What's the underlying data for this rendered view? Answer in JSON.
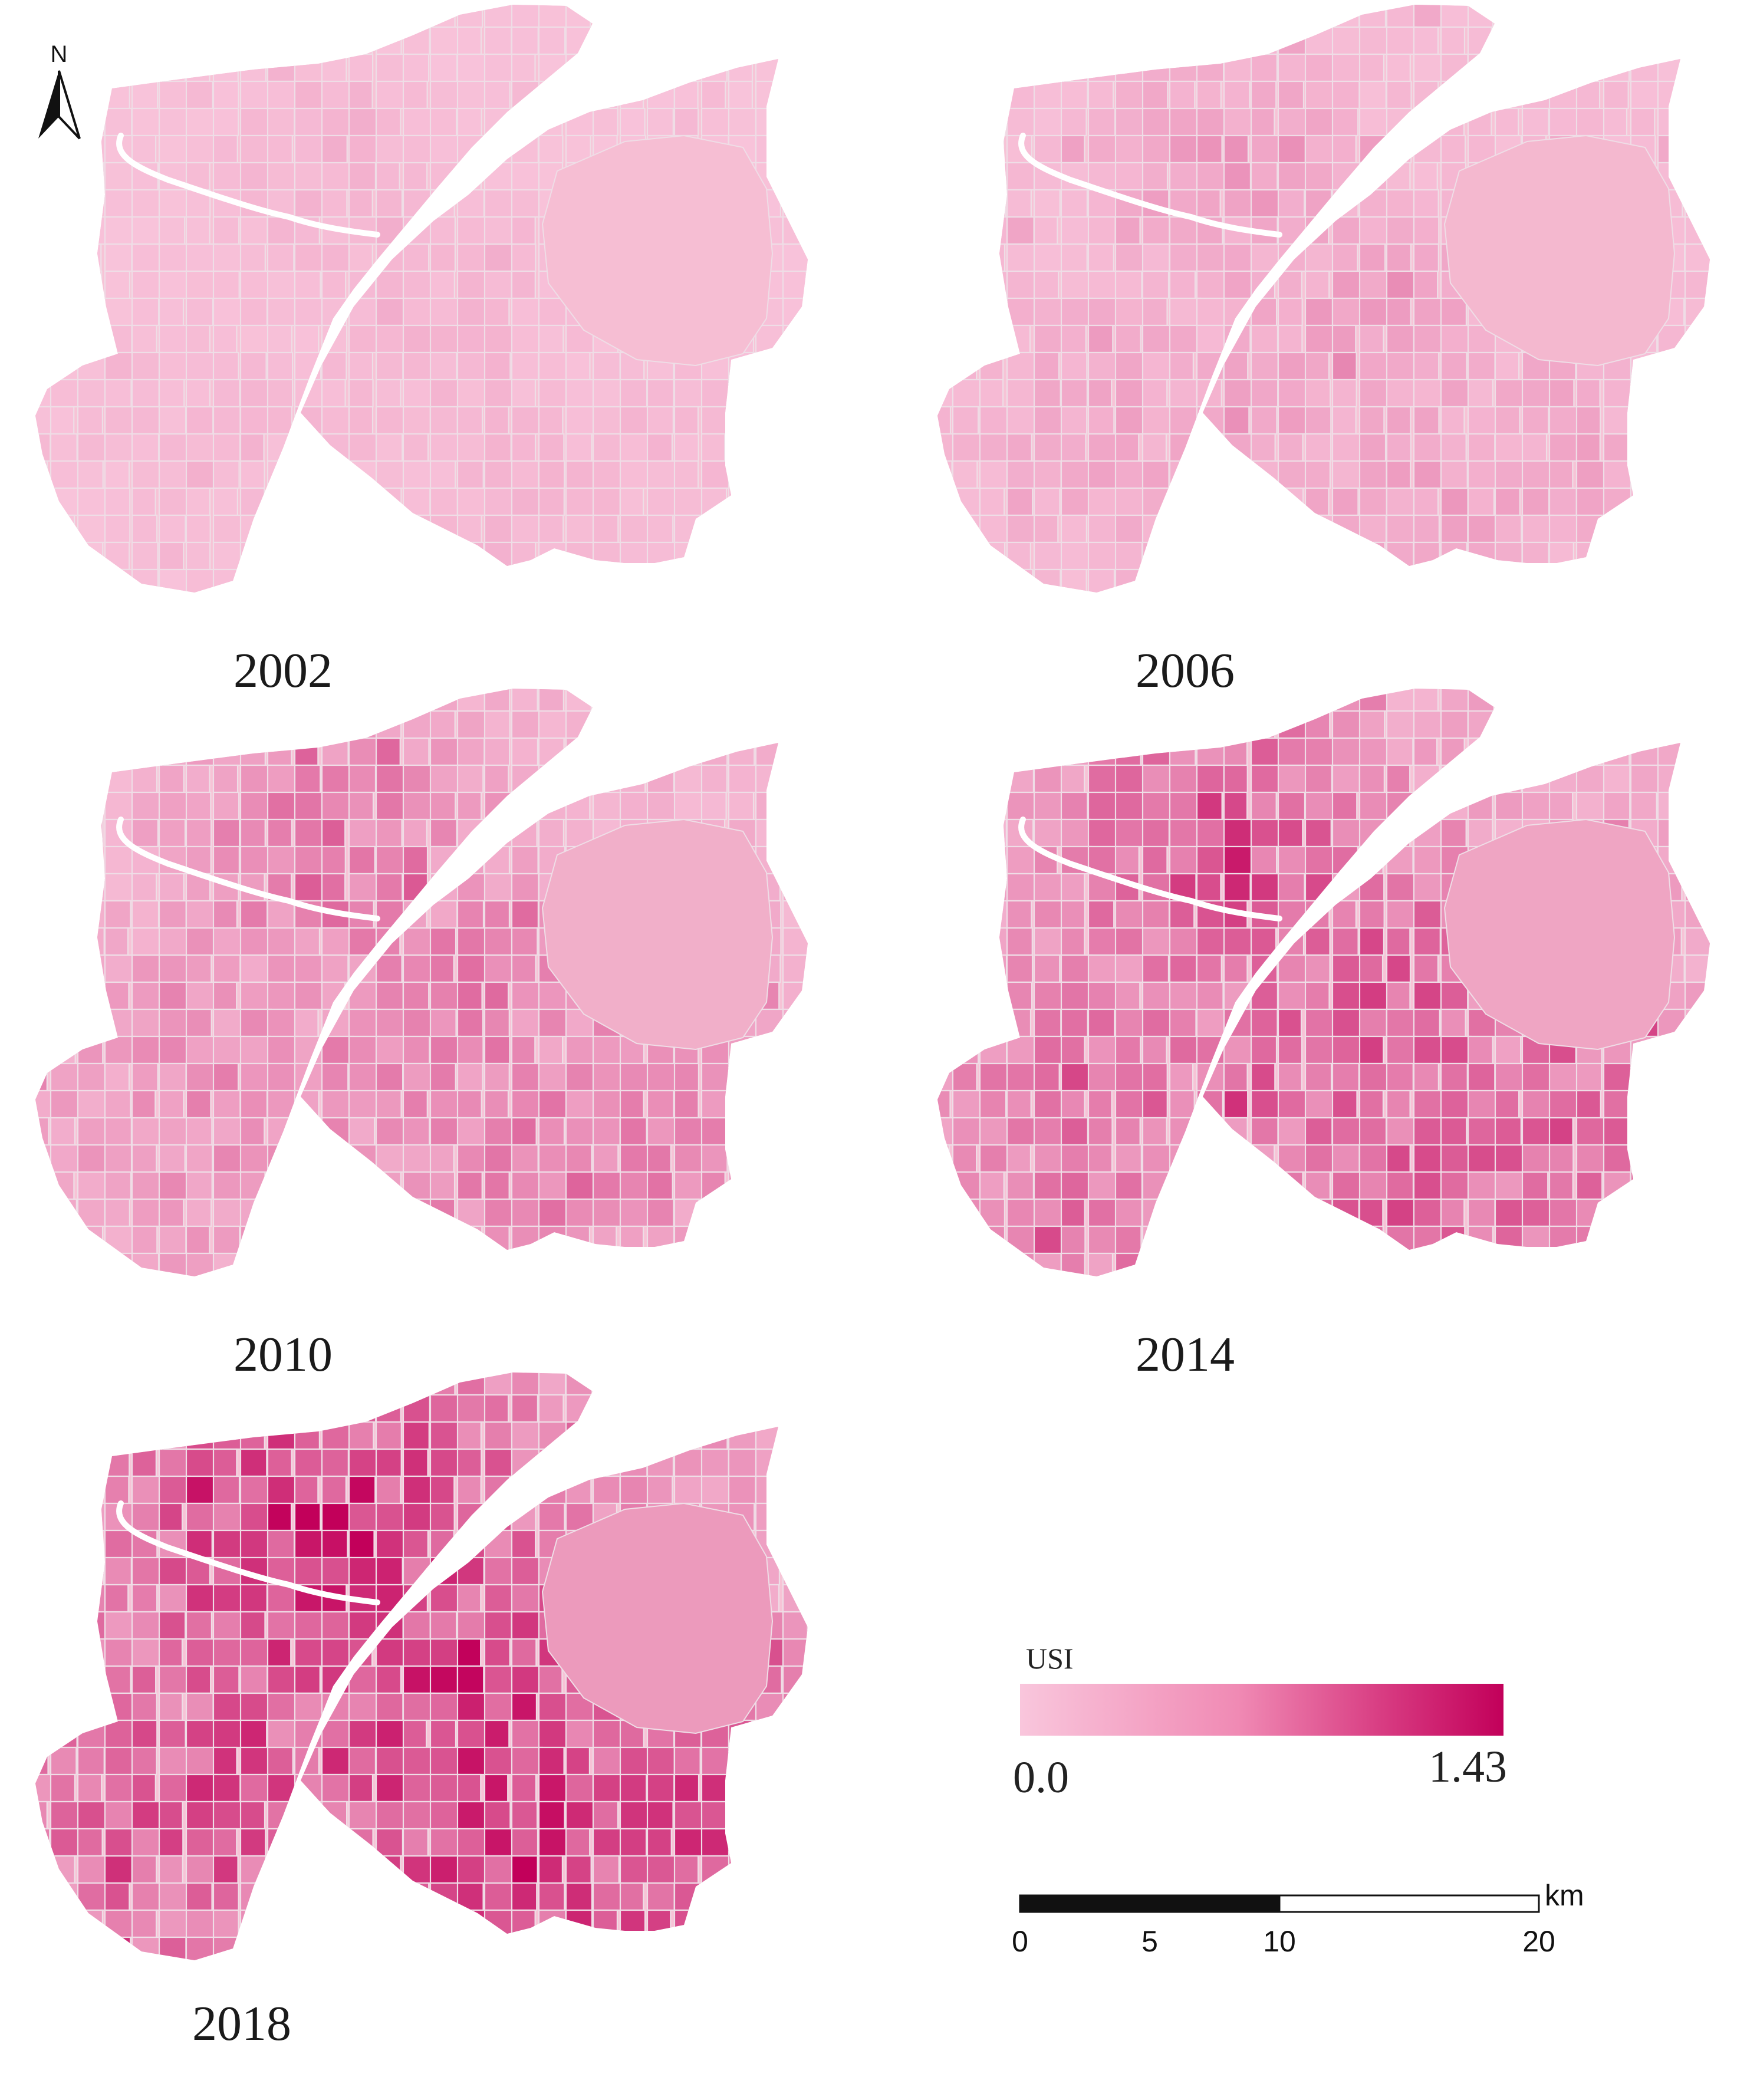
{
  "north_arrow": {
    "label": "N"
  },
  "panels": [
    {
      "year": "2002",
      "intensity": 0.1
    },
    {
      "year": "2006",
      "intensity": 0.22
    },
    {
      "year": "2010",
      "intensity": 0.42
    },
    {
      "year": "2014",
      "intensity": 0.62
    },
    {
      "year": "2018",
      "intensity": 0.85
    }
  ],
  "legend": {
    "title": "USI",
    "min_label": "0.0",
    "max_label": "1.43",
    "color_low": "#f9c6dc",
    "color_high": "#c2005a"
  },
  "scale_bar": {
    "unit": "km",
    "ticks": [
      "0",
      "5",
      "10",
      "20"
    ]
  },
  "colors": {
    "base": "#f7c3d6",
    "river": "#ffffff",
    "district_lines": "#efdde6"
  }
}
